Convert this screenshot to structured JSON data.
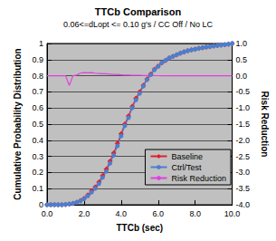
{
  "chart_data": {
    "type": "line",
    "title": "TTCb Comparison",
    "subtitle": "0.06<=dLopt <= 0.10 g's / CC Off / No LC",
    "x_label": "TTCb (sec)",
    "y_label": "Cumulative Probability Distribution",
    "y2_label": "Risk Reduction",
    "x": [
      0,
      0.2,
      0.4,
      0.6,
      0.8,
      1.0,
      1.2,
      1.4,
      1.6,
      1.8,
      2.0,
      2.2,
      2.4,
      2.6,
      2.8,
      3.0,
      3.2,
      3.4,
      3.6,
      3.8,
      4.0,
      4.2,
      4.4,
      4.6,
      4.8,
      5.0,
      5.2,
      5.4,
      5.6,
      5.8,
      6.0,
      6.2,
      6.4,
      6.6,
      6.8,
      7.0,
      7.2,
      7.4,
      7.6,
      7.8,
      8.0,
      8.2,
      8.4,
      8.6,
      8.8,
      9.0,
      9.2,
      9.4,
      9.6,
      9.8,
      10.0
    ],
    "series": [
      {
        "name": "Baseline",
        "color": "#e0202a",
        "marker": "diamond",
        "line_style": "solid",
        "values": [
          0,
          0,
          0,
          0,
          0,
          0.002,
          0.004,
          0.008,
          0.015,
          0.025,
          0.04,
          0.06,
          0.085,
          0.11,
          0.14,
          0.18,
          0.22,
          0.27,
          0.32,
          0.38,
          0.44,
          0.5,
          0.55,
          0.61,
          0.66,
          0.7,
          0.74,
          0.78,
          0.81,
          0.84,
          0.86,
          0.88,
          0.895,
          0.91,
          0.92,
          0.93,
          0.94,
          0.948,
          0.955,
          0.96,
          0.965,
          0.97,
          0.974,
          0.978,
          0.981,
          0.984,
          0.987,
          0.99,
          0.993,
          0.996,
          1.0
        ]
      },
      {
        "name": "Ctrl/Test",
        "color": "#4a7fd0",
        "marker": "circle",
        "line_style": "solid",
        "values": [
          0,
          0,
          0,
          0,
          0,
          0.002,
          0.005,
          0.008,
          0.015,
          0.023,
          0.036,
          0.055,
          0.077,
          0.101,
          0.13,
          0.169,
          0.207,
          0.257,
          0.307,
          0.365,
          0.427,
          0.49,
          0.54,
          0.6,
          0.65,
          0.69,
          0.735,
          0.775,
          0.805,
          0.837,
          0.857,
          0.88,
          0.895,
          0.91,
          0.92,
          0.93,
          0.94,
          0.948,
          0.955,
          0.96,
          0.965,
          0.97,
          0.974,
          0.978,
          0.981,
          0.984,
          0.987,
          0.99,
          0.993,
          0.996,
          1.0
        ]
      },
      {
        "name": "Risk Reduction",
        "color": "#e040e0",
        "marker": "none",
        "line_style": "solid",
        "axis": "y2",
        "values": [
          0,
          0,
          0,
          0,
          0,
          0,
          -0.3,
          0,
          0.02,
          0.08,
          0.1,
          0.09,
          0.1,
          0.08,
          0.07,
          0.06,
          0.06,
          0.05,
          0.04,
          0.04,
          0.03,
          0.02,
          0.02,
          0.016,
          0.015,
          0.014,
          0.007,
          0.006,
          0.006,
          0.004,
          0.003,
          0,
          0,
          0,
          0,
          0,
          0,
          0,
          0,
          0,
          0,
          0,
          0,
          0,
          0,
          0,
          0,
          0,
          0,
          0,
          0
        ]
      }
    ],
    "xlim": [
      0,
      10
    ],
    "xticks": [
      {
        "value": 0,
        "label": "0.0"
      },
      {
        "value": 2,
        "label": "2.0"
      },
      {
        "value": 4,
        "label": "4.0"
      },
      {
        "value": 6,
        "label": "6.0"
      },
      {
        "value": 8,
        "label": "8.0"
      },
      {
        "value": 10,
        "label": "10.0"
      }
    ],
    "ylim": [
      0,
      1
    ],
    "yticks": [
      0,
      0.1,
      0.2,
      0.3,
      0.4,
      0.5,
      0.6,
      0.7,
      0.8,
      0.9,
      1
    ],
    "y2lim": [
      -4,
      1
    ],
    "y2ticks": [
      {
        "value": -4,
        "label": "-4.0"
      },
      -3.5,
      {
        "value": -3,
        "label": "-3.0"
      },
      -2.5,
      {
        "value": -2,
        "label": "-2.0"
      },
      -1.5,
      {
        "value": -1,
        "label": "-1.0"
      },
      -0.5,
      {
        "value": 0,
        "label": "0.0"
      },
      0.5,
      {
        "value": 1,
        "label": "1.0"
      }
    ],
    "grid": true,
    "legend": "lower right"
  }
}
